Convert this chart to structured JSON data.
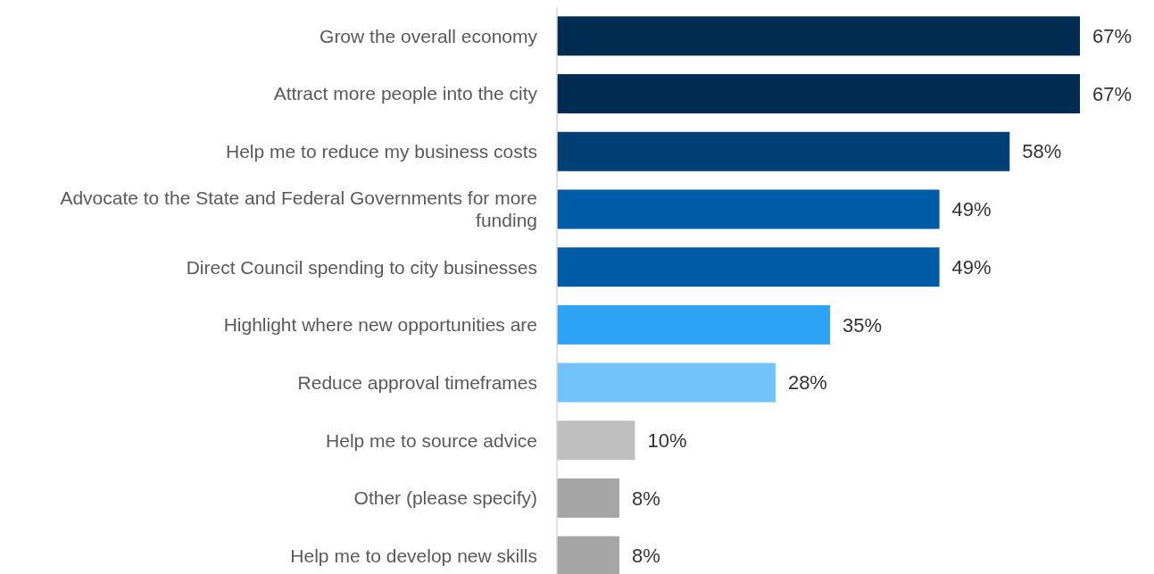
{
  "chart_data": {
    "type": "bar",
    "orientation": "horizontal",
    "value_labels": [
      "67%",
      "67%",
      "58%",
      "49%",
      "49%",
      "35%",
      "28%",
      "10%",
      "8%",
      "8%"
    ],
    "categories": [
      "Grow the overall economy",
      "Attract more people into the city",
      "Help me to reduce my business costs",
      "Advocate to the State and Federal Governments for more funding",
      "Direct Council spending to city businesses",
      "Highlight where new opportunities are",
      "Reduce approval timeframes",
      "Help me to source advice",
      "Other (please specify)",
      "Help me to develop new skills"
    ],
    "values": [
      67,
      67,
      58,
      49,
      49,
      35,
      28,
      10,
      8,
      8
    ],
    "colors": [
      "#002c52",
      "#002c52",
      "#003f74",
      "#005ba6",
      "#005ba6",
      "#2ea2f5",
      "#72c3fb",
      "#bfbfbf",
      "#a5a5a5",
      "#a5a5a5"
    ]
  }
}
